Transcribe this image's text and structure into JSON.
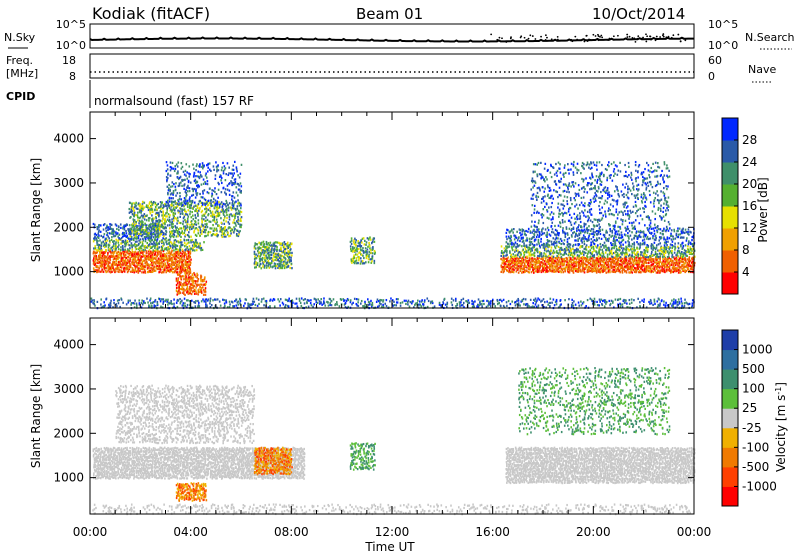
{
  "header": {
    "station": "Kodiak (fitACF)",
    "beam": "Beam 01",
    "date": "10/Oct/2014"
  },
  "noise_panel": {
    "left_label": "N.Sky",
    "right_label": "N.Search",
    "left_ticks": [
      "10^5",
      "10^0"
    ],
    "right_ticks": [
      "10^5",
      "10^0"
    ]
  },
  "freq_panel": {
    "left_label_1": "Freq.",
    "left_label_2": "[MHz]",
    "right_label": "Nave",
    "left_ticks": [
      "18",
      "8"
    ],
    "right_ticks": [
      "60",
      "0"
    ]
  },
  "cpid": {
    "label": "CPID",
    "value": "normalsound (fast) 157 RF"
  },
  "chart_data": [
    {
      "type": "heatmap",
      "quantity": "power",
      "ylabel": "Slant Range [km]",
      "ylim": [
        180,
        4600
      ],
      "yticks": [
        1000,
        2000,
        3000,
        4000
      ],
      "xlabel": "Time UT",
      "xlim": [
        0,
        24
      ],
      "xtick_labels": [
        "00:00",
        "04:00",
        "08:00",
        "12:00",
        "16:00",
        "20:00",
        "00:00"
      ],
      "colorbar": {
        "label": "Power [dB]",
        "ticks": [
          "4",
          "8",
          "12",
          "16",
          "20",
          "24",
          "28"
        ],
        "colors": [
          "#0028ff",
          "#2a5aa8",
          "#3f8f6a",
          "#55b030",
          "#e6e000",
          "#f0a000",
          "#f06000",
          "#ff0000"
        ]
      }
    },
    {
      "type": "heatmap",
      "quantity": "velocity",
      "ylabel": "Slant Range [km]",
      "ylim": [
        180,
        4600
      ],
      "yticks": [
        1000,
        2000,
        3000,
        4000
      ],
      "xlabel": "Time UT",
      "xlim": [
        0,
        24
      ],
      "xtick_labels": [
        "00:00",
        "04:00",
        "08:00",
        "12:00",
        "16:00",
        "20:00",
        "00:00"
      ],
      "colorbar": {
        "label": "Velocity [m s",
        "label_sup": "-1",
        "label_end": "]",
        "ticks": [
          "1000",
          "500",
          "100",
          "25",
          "-25",
          "-100",
          "-500",
          "-1000"
        ],
        "colors": [
          "#1f3ea8",
          "#2e6fa0",
          "#3d8f6e",
          "#5cbf3a",
          "#c8c8c8",
          "#f0b000",
          "#f07a00",
          "#ff4000",
          "#ff0000"
        ]
      }
    }
  ]
}
